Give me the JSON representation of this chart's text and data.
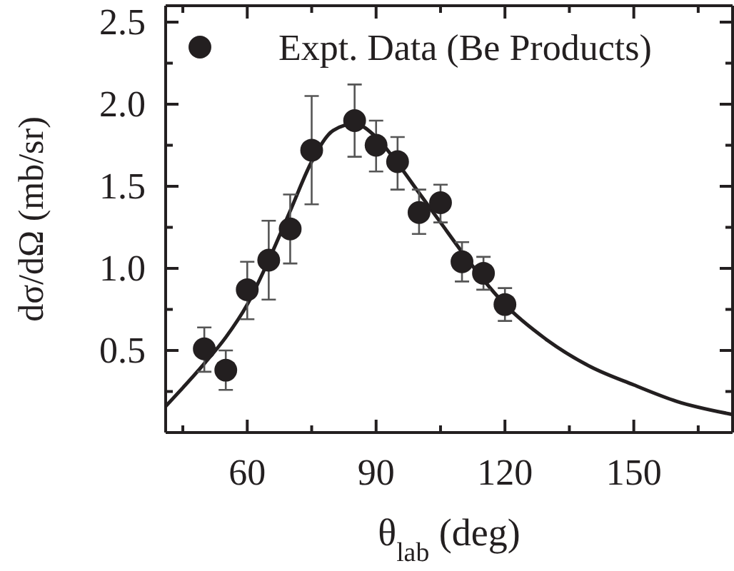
{
  "chart_data": {
    "type": "scatter",
    "xlabel": "θ$_{lab}$ (deg)",
    "ylabel": "dσ/dΩ (mb/sr)",
    "xlim": [
      41,
      173
    ],
    "xticks": [
      {
        "value": 45,
        "label": null
      },
      60,
      {
        "value": 75,
        "label": null
      },
      90,
      {
        "value": 105,
        "label": null
      },
      120,
      {
        "value": 135,
        "label": null
      },
      150,
      {
        "value": 165,
        "label": null
      }
    ],
    "ylim": [
      0,
      2.6
    ],
    "yticks": [
      {
        "value": 0.25,
        "label": null
      },
      0.5,
      {
        "value": 0.75,
        "label": null
      },
      "1.0",
      {
        "value": 1.25,
        "label": null
      },
      1.5,
      {
        "value": 1.75,
        "label": null
      },
      "2.0",
      {
        "value": 2.25,
        "label": null
      },
      2.5
    ],
    "legend": "top",
    "grid": false,
    "series": [
      {
        "marker": "circle",
        "name": "Expt. Data (Be Products)",
        "color": "#231f20",
        "x": [
          50,
          55,
          60,
          65,
          70,
          75,
          85,
          90,
          95,
          100,
          105,
          110,
          115,
          120
        ],
        "values": [
          0.51,
          0.38,
          0.87,
          1.05,
          1.24,
          1.72,
          1.9,
          1.75,
          1.65,
          1.34,
          1.4,
          1.04,
          0.97,
          0.78
        ],
        "errors": [
          [
            0.37,
            0.64
          ],
          [
            0.26,
            0.5
          ],
          [
            0.69,
            1.04
          ],
          [
            0.81,
            1.29
          ],
          [
            1.03,
            1.45
          ],
          [
            1.39,
            2.05
          ],
          [
            1.68,
            2.12
          ],
          [
            1.59,
            1.9
          ],
          [
            1.48,
            1.8
          ],
          [
            1.21,
            1.48
          ],
          [
            1.28,
            1.51
          ],
          [
            0.92,
            1.16
          ],
          [
            0.87,
            1.07
          ],
          [
            0.68,
            0.88
          ]
        ]
      },
      {
        "type": "line",
        "color": "#231f20",
        "line_style": "solid",
        "x": [
          41,
          50,
          55,
          60,
          65,
          70,
          75,
          80,
          85,
          90,
          95,
          100,
          105,
          110,
          115,
          120,
          130,
          140,
          150,
          160,
          173
        ],
        "values": [
          0.16,
          0.42,
          0.58,
          0.78,
          1.05,
          1.35,
          1.65,
          1.84,
          1.88,
          1.8,
          1.64,
          1.46,
          1.28,
          1.1,
          0.93,
          0.78,
          0.56,
          0.4,
          0.29,
          0.19,
          0.11
        ]
      }
    ]
  }
}
